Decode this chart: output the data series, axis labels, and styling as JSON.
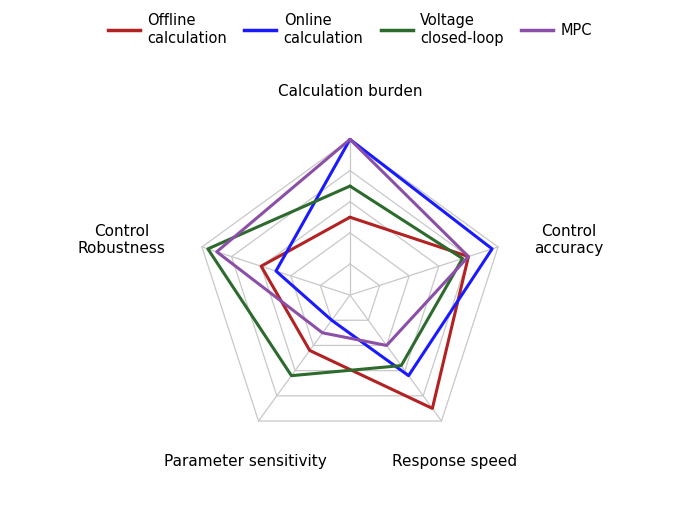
{
  "categories": [
    "Calculation burden",
    "Control\naccuracy",
    "Response speed",
    "Parameter sensitivity",
    "Control\nRobustness"
  ],
  "category_labels": [
    "Calculation burden",
    "Control\naccuracy",
    "Response speed",
    "Parameter sensitivity",
    "Control\nRobustness"
  ],
  "num_vars": 5,
  "max_value": 5,
  "grid_levels": [
    1,
    2,
    3,
    4,
    5
  ],
  "series": [
    {
      "name": "Offline\ncalculation",
      "color": "#b22222",
      "values": [
        2.5,
        4.0,
        4.5,
        2.2,
        3.0
      ]
    },
    {
      "name": "Online\ncalculation",
      "color": "#1a1aff",
      "values": [
        5.0,
        4.8,
        3.2,
        1.0,
        2.5
      ]
    },
    {
      "name": "Voltage\nclosed-loop",
      "color": "#2d6a2d",
      "values": [
        3.5,
        3.8,
        2.8,
        3.2,
        4.8
      ]
    },
    {
      "name": "MPC",
      "color": "#8b4fa8",
      "values": [
        5.0,
        4.0,
        2.0,
        1.5,
        4.5
      ]
    }
  ],
  "grid_color": "#c8c8c8",
  "line_width": 2.2,
  "figsize": [
    7.0,
    5.13
  ],
  "dpi": 100
}
